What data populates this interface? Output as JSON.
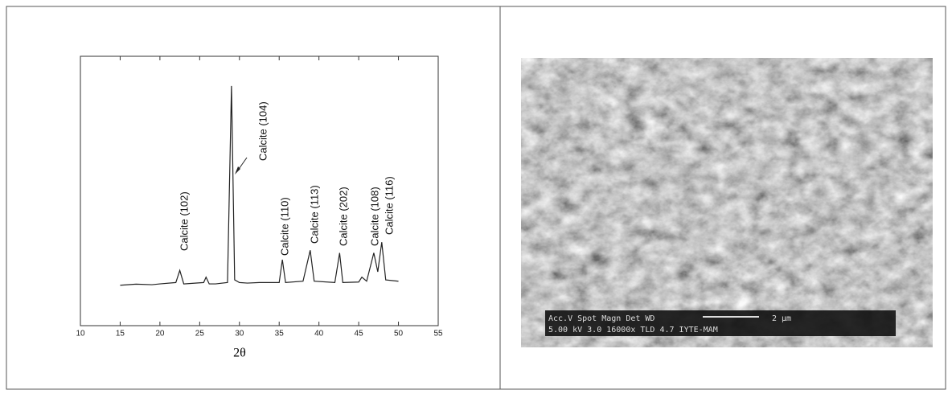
{
  "chart_data": {
    "type": "line",
    "xlabel": "2θ",
    "xlim": [
      10,
      55
    ],
    "xticks": [
      10,
      15,
      20,
      25,
      30,
      35,
      40,
      45,
      50,
      55
    ],
    "ylim": [
      0,
      100
    ],
    "color": "#222222",
    "x": [
      15,
      17,
      19,
      20,
      22,
      22.5,
      23,
      25.5,
      25.8,
      26.2,
      27,
      28.5,
      29,
      29.4,
      30,
      31,
      32.5,
      35,
      35.4,
      35.8,
      38,
      38.9,
      39.4,
      42,
      42.6,
      43,
      45,
      45.4,
      46,
      46.9,
      47.4,
      47.9,
      48.4,
      50
    ],
    "values": [
      15,
      15.4,
      15.2,
      15.5,
      16,
      20.5,
      15.5,
      16,
      18,
      15.5,
      15.5,
      16,
      89,
      17,
      16,
      15.8,
      16,
      16,
      24.5,
      16,
      16.5,
      28,
      16.5,
      16,
      27,
      16,
      16.2,
      18,
      16.5,
      27,
      20,
      31,
      17,
      16.5
    ],
    "annotations": [
      "Calcite (102)",
      "Calcite (104)",
      "Calcite (110)",
      "Calcite (113)",
      "Calcite (202)",
      "Calcite (108)",
      "Calcite (116)"
    ]
  },
  "sem": {
    "header": "Acc.V  Spot Magn    Det  WD",
    "info": "5.00 kV 3.0  16000x  TLD  4.7   IYTE-MAM",
    "scale": "2 µm"
  }
}
